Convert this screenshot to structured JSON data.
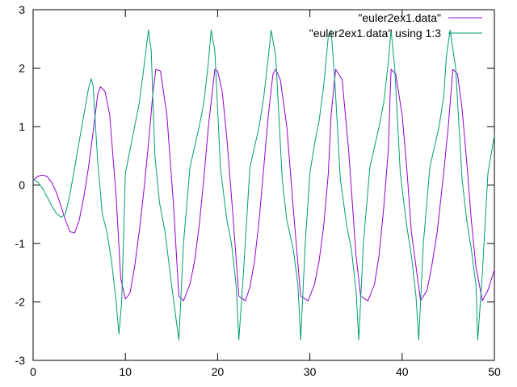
{
  "chart_data": {
    "type": "line",
    "title": "",
    "xlabel": "",
    "ylabel": "",
    "xlim": [
      0,
      50
    ],
    "ylim": [
      -3,
      3
    ],
    "grid": false,
    "legend_position": "top-right",
    "x_ticks": [
      {
        "value": 0,
        "label": "0"
      },
      {
        "value": 10,
        "label": "10"
      },
      {
        "value": 20,
        "label": "20"
      },
      {
        "value": 30,
        "label": "30"
      },
      {
        "value": 40,
        "label": "40"
      },
      {
        "value": 50,
        "label": "50"
      }
    ],
    "y_ticks": [
      {
        "value": -3,
        "label": "-3"
      },
      {
        "value": -2,
        "label": "-2"
      },
      {
        "value": -1,
        "label": "-1"
      },
      {
        "value": 0,
        "label": "0"
      },
      {
        "value": 1,
        "label": "1"
      },
      {
        "value": 2,
        "label": "2"
      },
      {
        "value": 3,
        "label": "3"
      }
    ],
    "series": [
      {
        "name": "\"euler2ex1.data\"",
        "color": "#9400d3",
        "x": [
          0,
          0.5,
          1,
          1.5,
          2,
          2.5,
          3,
          3.5,
          4,
          4.5,
          5,
          5.5,
          6,
          6.5,
          7,
          7.3,
          7.8,
          8.3,
          9,
          9.5,
          10,
          10.5,
          11,
          11.5,
          12,
          12.5,
          13,
          13.3,
          13.8,
          14.5,
          15.2,
          15.8,
          16.3,
          17,
          17.5,
          18,
          18.5,
          19,
          19.7,
          20,
          20.5,
          21,
          21.7,
          22.3,
          23,
          23.5,
          24,
          24.5,
          25,
          25.5,
          26,
          26.3,
          26.8,
          27.5,
          28.2,
          29,
          29.8,
          30.5,
          31,
          31.5,
          32,
          32.3,
          32.8,
          33.5,
          34.2,
          35,
          35.5,
          36.3,
          37,
          37.5,
          38,
          38.5,
          38.8,
          39.3,
          40,
          40.5,
          41,
          42,
          42.7,
          43.2,
          43.8,
          44.5,
          45,
          45.5,
          46,
          46.5,
          47,
          47.5,
          48,
          48.7,
          49.3,
          50
        ],
        "y": [
          0.08,
          0.15,
          0.17,
          0.15,
          0.05,
          -0.12,
          -0.35,
          -0.6,
          -0.8,
          -0.82,
          -0.6,
          -0.2,
          0.3,
          0.9,
          1.55,
          1.68,
          1.6,
          1.2,
          -0.2,
          -1.6,
          -1.95,
          -1.85,
          -1.4,
          -0.8,
          -0.1,
          0.7,
          1.6,
          1.98,
          1.95,
          1.2,
          -0.3,
          -1.9,
          -1.98,
          -1.7,
          -1.3,
          -0.7,
          0.1,
          1.0,
          1.98,
          1.95,
          1.6,
          0.8,
          -0.6,
          -1.9,
          -1.98,
          -1.75,
          -1.3,
          -0.6,
          0.3,
          1.2,
          1.9,
          1.98,
          1.8,
          1.0,
          -0.4,
          -1.9,
          -1.98,
          -1.7,
          -1.3,
          -0.7,
          0.2,
          1.2,
          1.98,
          1.8,
          0.6,
          -1.2,
          -1.9,
          -1.98,
          -1.7,
          -1.2,
          -0.4,
          0.6,
          1.98,
          1.9,
          1.2,
          0.3,
          -0.8,
          -1.98,
          -1.8,
          -1.4,
          -0.8,
          0.2,
          1.0,
          1.98,
          1.9,
          1.3,
          0.4,
          -0.6,
          -1.4,
          -1.98,
          -1.8,
          -1.45
        ]
      },
      {
        "name": "\"euler2ex1.data\" using 1:3",
        "color": "#009e73",
        "x": [
          0,
          0.5,
          1,
          1.5,
          2,
          2.5,
          3,
          3.5,
          4,
          4.5,
          5,
          5.5,
          6,
          6.3,
          6.5,
          7,
          7.5,
          8,
          8.5,
          9,
          9.3,
          9.6,
          10,
          10.5,
          11,
          11.5,
          12,
          12.5,
          12.8,
          13.2,
          13.7,
          14.3,
          15,
          15.5,
          15.8,
          16.3,
          17,
          18,
          18.5,
          19,
          19.3,
          19.7,
          20.3,
          21,
          21.5,
          22,
          22.3,
          22.8,
          23.5,
          24.5,
          25,
          25.5,
          25.8,
          26.3,
          27,
          27.5,
          28.2,
          28.7,
          29,
          29.5,
          30,
          30.5,
          31,
          31.5,
          32,
          32.3,
          32.7,
          33.3,
          34,
          34.5,
          35,
          35.3,
          35.8,
          36.5,
          37.5,
          38,
          38.5,
          38.8,
          39.2,
          39.8,
          40.5,
          41,
          41.5,
          41.8,
          42.3,
          43,
          44,
          44.5,
          44.8,
          45.2,
          45.8,
          46.5,
          47,
          47.5,
          48,
          48.2,
          48.7,
          49.3,
          50
        ],
        "y": [
          0.1,
          0.05,
          -0.05,
          -0.2,
          -0.35,
          -0.48,
          -0.55,
          -0.5,
          -0.15,
          0.3,
          0.75,
          1.2,
          1.65,
          1.82,
          1.7,
          0.4,
          -0.5,
          -0.8,
          -1.3,
          -2.0,
          -2.55,
          -2.0,
          0.2,
          0.6,
          1.0,
          1.4,
          2.0,
          2.65,
          2.3,
          0.5,
          -0.3,
          -0.8,
          -1.7,
          -2.3,
          -2.65,
          -1.0,
          0.3,
          1.0,
          1.4,
          2.1,
          2.65,
          2.3,
          0.3,
          -0.6,
          -1.0,
          -1.7,
          -2.65,
          -1.5,
          0.3,
          1.0,
          1.5,
          2.2,
          2.65,
          2.2,
          0.1,
          -0.6,
          -1.1,
          -1.7,
          -2.65,
          -1.0,
          0.2,
          0.7,
          1.1,
          1.7,
          2.55,
          2.65,
          1.8,
          0.1,
          -0.7,
          -1.1,
          -1.8,
          -2.65,
          -1.0,
          0.3,
          1.0,
          1.4,
          2.1,
          2.65,
          2.0,
          0.2,
          -0.7,
          -1.2,
          -1.9,
          -2.65,
          -1.0,
          0.3,
          1.0,
          1.5,
          2.2,
          2.65,
          2.0,
          0.1,
          -0.6,
          -1.1,
          -1.7,
          -2.65,
          -1.5,
          0.2,
          0.85
        ]
      }
    ]
  }
}
